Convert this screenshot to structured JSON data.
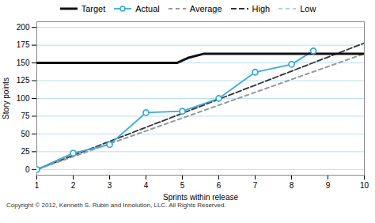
{
  "chart_data": {
    "type": "line",
    "xlabel": "Sprints within release",
    "ylabel": "Story points",
    "xlim": [
      1,
      10
    ],
    "xticks": [
      1,
      2,
      3,
      4,
      5,
      6,
      7,
      8,
      9,
      10
    ],
    "ylim": [
      -8,
      208
    ],
    "yticks": [
      0,
      25,
      50,
      75,
      100,
      125,
      150,
      175,
      200
    ],
    "grid": "y",
    "legend": "top",
    "annotations": [
      "Copyright © 2012, Kenneth S. Rubin and Innolution, LLC. All Rights Reserved."
    ],
    "series": [
      {
        "name": "Target",
        "color": "#111111",
        "line_style": "solid",
        "x": [
          1,
          4.85,
          5.15,
          5.6,
          10
        ],
        "values": [
          150,
          150,
          157,
          163,
          163
        ]
      },
      {
        "name": "Actual",
        "color": "#3aacdc",
        "line_style": "solid",
        "marker": "circle",
        "x": [
          1,
          2,
          3,
          4,
          5,
          6,
          7,
          8,
          8.6
        ],
        "values": [
          0,
          23,
          35,
          80,
          82,
          100,
          137,
          148,
          167
        ]
      },
      {
        "name": "Average",
        "color": "#999999",
        "line_style": "dashed",
        "x": [
          1,
          10
        ],
        "values": [
          0,
          163
        ]
      },
      {
        "name": "High",
        "color": "#333333",
        "line_style": "dashed",
        "x": [
          1,
          10
        ],
        "values": [
          0,
          178
        ]
      },
      {
        "name": "Low",
        "color": "#a8d4e8",
        "line_style": "dashed",
        "x": [
          1,
          10
        ],
        "values": [
          0,
          163
        ]
      }
    ]
  }
}
